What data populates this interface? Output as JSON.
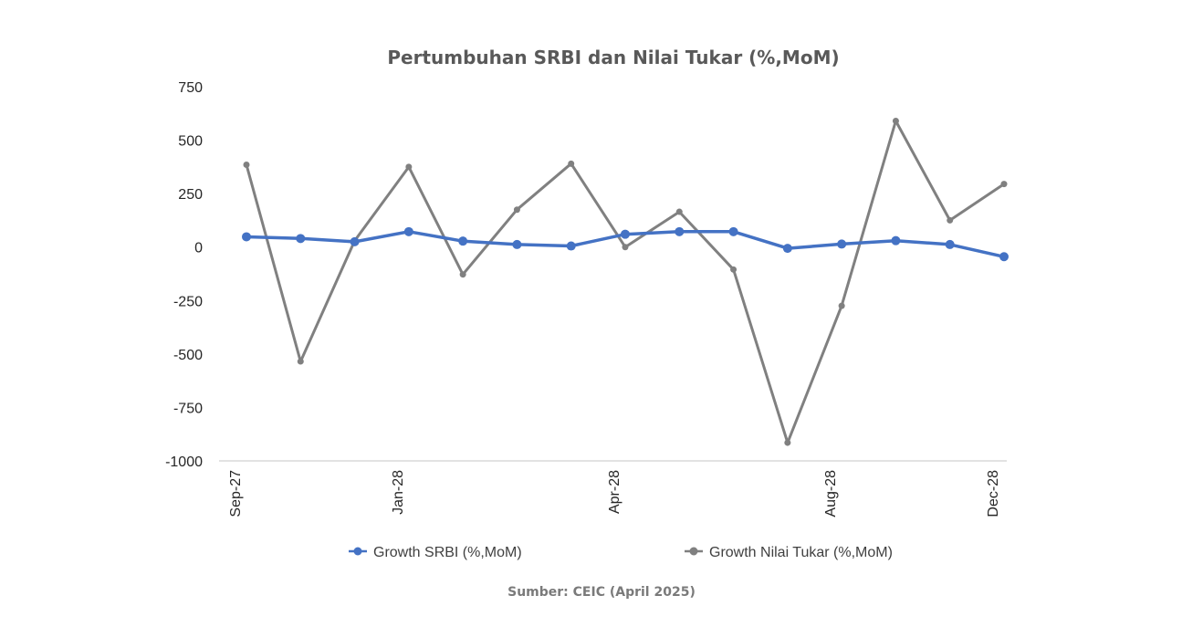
{
  "chart_data": {
    "type": "line",
    "title": "Pertumbuhan SRBI dan Nilai Tukar (%,MoM)",
    "xlabel": "",
    "ylabel": "",
    "ylim": [
      -1000,
      750
    ],
    "yticks": [
      750,
      500,
      250,
      0,
      -250,
      -500,
      -750,
      -1000
    ],
    "yticks_labels": [
      "750",
      "500",
      "250",
      "0",
      "-250",
      "-500",
      "-750",
      "-1000"
    ],
    "x_tick_labels": [
      {
        "index": 0,
        "label": "Sep-27"
      },
      {
        "index": 3,
        "label": "Jan-28"
      },
      {
        "index": 7,
        "label": "Apr-28"
      },
      {
        "index": 11,
        "label": "Aug-28"
      },
      {
        "index": 14,
        "label": "Dec-28"
      }
    ],
    "x_count": 15,
    "grid": false,
    "legend_position": "bottom",
    "series": [
      {
        "name": "Growth SRBI (%,MoM)",
        "color": "#4472C4",
        "values": [
          48,
          40,
          25,
          72,
          28,
          12,
          5,
          60,
          72,
          72,
          -6,
          14,
          30,
          12,
          -45
        ]
      },
      {
        "name": "Growth Nilai Tukar (%,MoM)",
        "color": "#808080",
        "values": [
          385,
          -535,
          30,
          375,
          -128,
          175,
          390,
          0,
          165,
          -105,
          -915,
          -275,
          590,
          125,
          295
        ]
      }
    ]
  },
  "source_note": "Sumber: CEIC (April 2025)"
}
